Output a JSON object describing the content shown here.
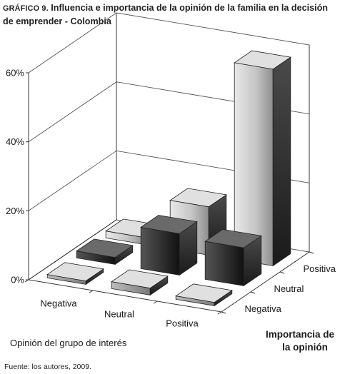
{
  "title": {
    "lead": "GRÁFICO 9.",
    "text": "Influencia e importancia de la opinión de la familia en la decisión de emprender - Colombia"
  },
  "source": "Fuente: los autores, 2009.",
  "chart_data": {
    "type": "bar3d",
    "ylim": [
      0,
      60
    ],
    "y_ticks": [
      "0%",
      "20%",
      "40%",
      "60%"
    ],
    "y_tick_values": [
      0,
      20,
      40,
      60
    ],
    "x_axis": {
      "label": "Opinión del grupo de interés",
      "categories": [
        "Negativa",
        "Neutral",
        "Positiva"
      ]
    },
    "depth_axis": {
      "label_line1": "Importancia de",
      "label_line2": "la opinión",
      "categories": [
        "Negativa",
        "Neutral",
        "Positiva"
      ]
    },
    "series": [
      {
        "importance": "Negativa",
        "values": [
          1,
          2,
          1
        ],
        "color": "#9a9a9a"
      },
      {
        "importance": "Neutral",
        "values": [
          2,
          12,
          11
        ],
        "color": "#3a3a3a"
      },
      {
        "importance": "Positiva",
        "values": [
          2,
          14,
          57
        ],
        "color": "#cfcfcf"
      }
    ],
    "grid": true
  }
}
